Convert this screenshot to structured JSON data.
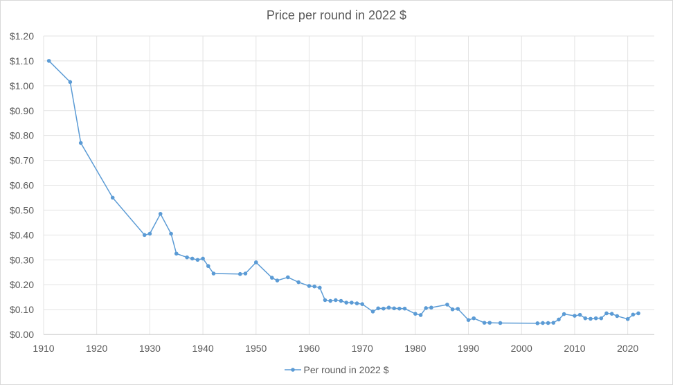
{
  "chart_data": {
    "type": "line",
    "title": "Price per round in 2022 $",
    "xlabel": "",
    "ylabel": "",
    "xlim": [
      1910,
      2025
    ],
    "ylim": [
      0,
      1.2
    ],
    "x_ticks": [
      "1910",
      "1920",
      "1930",
      "1940",
      "1950",
      "1960",
      "1970",
      "1980",
      "1990",
      "2000",
      "2010",
      "2020"
    ],
    "y_ticks": [
      "$0.00",
      "$0.10",
      "$0.20",
      "$0.30",
      "$0.40",
      "$0.50",
      "$0.60",
      "$0.70",
      "$0.80",
      "$0.90",
      "$1.00",
      "$1.10",
      "$1.20"
    ],
    "grid": true,
    "legend_position": "bottom",
    "series": [
      {
        "name": "Per round in 2022 $",
        "color": "#5b9bd5",
        "points": [
          [
            1911,
            1.1
          ],
          [
            1915,
            1.015
          ],
          [
            1917,
            0.77
          ],
          [
            1923,
            0.55
          ],
          [
            1929,
            0.4
          ],
          [
            1930,
            0.405
          ],
          [
            1932,
            0.485
          ],
          [
            1934,
            0.405
          ],
          [
            1935,
            0.325
          ],
          [
            1937,
            0.31
          ],
          [
            1938,
            0.305
          ],
          [
            1939,
            0.3
          ],
          [
            1940,
            0.305
          ],
          [
            1941,
            0.275
          ],
          [
            1942,
            0.245
          ],
          [
            1947,
            0.243
          ],
          [
            1948,
            0.245
          ],
          [
            1950,
            0.29
          ],
          [
            1953,
            0.228
          ],
          [
            1954,
            0.217
          ],
          [
            1956,
            0.23
          ],
          [
            1958,
            0.21
          ],
          [
            1960,
            0.195
          ],
          [
            1961,
            0.193
          ],
          [
            1962,
            0.188
          ],
          [
            1963,
            0.138
          ],
          [
            1964,
            0.135
          ],
          [
            1965,
            0.138
          ],
          [
            1966,
            0.135
          ],
          [
            1967,
            0.128
          ],
          [
            1968,
            0.128
          ],
          [
            1969,
            0.125
          ],
          [
            1970,
            0.122
          ],
          [
            1972,
            0.092
          ],
          [
            1973,
            0.105
          ],
          [
            1974,
            0.104
          ],
          [
            1975,
            0.108
          ],
          [
            1976,
            0.105
          ],
          [
            1977,
            0.104
          ],
          [
            1978,
            0.104
          ],
          [
            1980,
            0.083
          ],
          [
            1981,
            0.078
          ],
          [
            1982,
            0.106
          ],
          [
            1983,
            0.108
          ],
          [
            1986,
            0.12
          ],
          [
            1987,
            0.101
          ],
          [
            1988,
            0.103
          ],
          [
            1990,
            0.058
          ],
          [
            1991,
            0.065
          ],
          [
            1993,
            0.047
          ],
          [
            1994,
            0.047
          ],
          [
            1996,
            0.046
          ],
          [
            2003,
            0.045
          ],
          [
            2004,
            0.046
          ],
          [
            2005,
            0.046
          ],
          [
            2006,
            0.047
          ],
          [
            2007,
            0.06
          ],
          [
            2008,
            0.082
          ],
          [
            2010,
            0.075
          ],
          [
            2011,
            0.079
          ],
          [
            2012,
            0.065
          ],
          [
            2013,
            0.063
          ],
          [
            2014,
            0.065
          ],
          [
            2015,
            0.065
          ],
          [
            2016,
            0.085
          ],
          [
            2017,
            0.083
          ],
          [
            2018,
            0.074
          ],
          [
            2020,
            0.062
          ],
          [
            2021,
            0.08
          ],
          [
            2022,
            0.085
          ]
        ]
      }
    ]
  }
}
